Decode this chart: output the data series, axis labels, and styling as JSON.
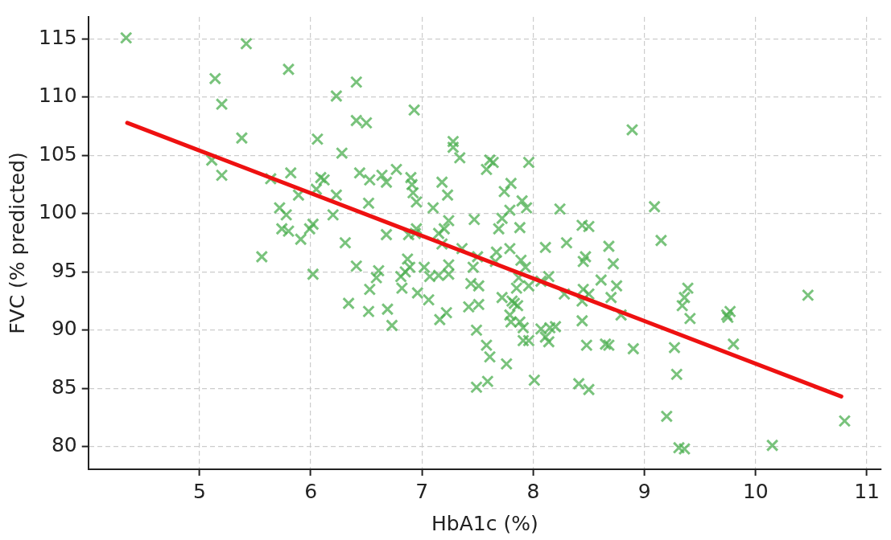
{
  "chart_data": {
    "type": "scatter",
    "xlabel": "HbA1c (%)",
    "ylabel": "FVC (% predicted)",
    "xlim": [
      4.0,
      11.13
    ],
    "ylim": [
      78.05,
      116.9
    ],
    "xticks": [
      5,
      6,
      7,
      8,
      9,
      10,
      11
    ],
    "yticks": [
      80,
      85,
      90,
      95,
      100,
      105,
      110,
      115
    ],
    "grid": true,
    "series": [
      {
        "marker": "cross",
        "color": "#4caf50",
        "x": [
          4.34,
          5.42,
          5.8,
          5.14,
          5.2,
          6.41,
          6.23,
          6.93,
          5.38,
          6.41,
          6.5,
          6.06,
          6.28,
          5.11,
          5.2,
          5.82,
          5.64,
          6.09,
          6.12,
          6.44,
          6.53,
          6.64,
          6.68,
          6.77,
          6.9,
          6.91,
          6.05,
          6.23,
          5.89,
          6.52,
          6.92,
          6.95,
          7.28,
          7.28,
          7.34,
          7.61,
          7.64,
          7.58,
          7.96,
          7.18,
          7.8,
          7.74,
          7.23,
          7.9,
          7.94,
          7.1,
          7.24,
          7.47,
          7.72,
          8.24,
          7.79,
          5.72,
          5.78,
          6.2,
          6.02,
          5.99,
          5.74,
          5.8,
          5.91,
          6.95,
          6.94,
          6.88,
          6.68,
          7.15,
          7.2,
          7.18,
          6.31,
          5.56,
          6.41,
          6.02,
          6.87,
          6.89,
          6.61,
          6.59,
          6.85,
          6.81,
          6.53,
          6.82,
          7.02,
          7.07,
          7.15,
          7.24,
          7.24,
          7.36,
          7.5,
          7.46,
          7.67,
          7.66,
          7.89,
          7.93,
          7.79,
          7.88,
          7.69,
          8.11,
          8.3,
          8.44,
          8.5,
          8.68,
          8.72,
          8.47,
          8.45,
          8.14,
          8.61,
          8.75,
          8.7,
          8.79,
          8.45,
          8.5,
          8.44,
          8.28,
          8.07,
          7.96,
          7.87,
          7.85,
          7.44,
          7.51,
          7.42,
          7.51,
          7.06,
          7.22,
          7.16,
          6.96,
          6.69,
          6.52,
          6.73,
          6.34,
          7.49,
          7.58,
          7.61,
          7.76,
          7.59,
          7.49,
          8.01,
          8.41,
          8.5,
          7.72,
          7.81,
          7.83,
          7.86,
          7.79,
          7.8,
          7.88,
          7.91,
          7.91,
          7.96,
          8.07,
          8.11,
          8.14,
          8.2,
          8.15,
          8.44,
          8.48,
          8.65,
          8.68,
          8.9,
          8.89,
          9.09,
          9.15,
          9.27,
          9.29,
          9.2,
          9.31,
          9.36,
          10.15,
          10.8,
          10.47,
          9.39,
          9.36,
          9.34,
          9.41,
          9.74,
          9.77,
          9.75,
          9.8
        ],
        "values": [
          115.1,
          114.6,
          112.4,
          111.6,
          109.4,
          111.3,
          110.1,
          108.9,
          106.5,
          108,
          107.8,
          106.4,
          105.2,
          104.6,
          103.3,
          103.5,
          103,
          103.1,
          102.9,
          103.5,
          102.9,
          103.3,
          102.7,
          103.8,
          103.1,
          102.5,
          102.1,
          101.6,
          101.6,
          100.9,
          101.8,
          101,
          106.2,
          105.7,
          104.8,
          104.6,
          104.4,
          103.8,
          104.4,
          102.7,
          102.6,
          101.9,
          101.6,
          101.1,
          100.5,
          100.5,
          99.4,
          99.5,
          99.6,
          100.4,
          100.3,
          100.5,
          99.9,
          99.9,
          99.1,
          98.7,
          98.7,
          98.5,
          97.8,
          98.7,
          98.3,
          98.2,
          98.2,
          98.3,
          98.7,
          97.4,
          97.5,
          96.3,
          95.5,
          94.8,
          96.1,
          95.4,
          95.1,
          94.5,
          95,
          94.6,
          93.5,
          93.6,
          95.4,
          94.6,
          94.7,
          94.8,
          95.6,
          97,
          96.3,
          95.4,
          96.7,
          95.9,
          96,
          95.4,
          97,
          98.8,
          98.7,
          97.1,
          97.5,
          99,
          98.9,
          97.2,
          95.7,
          96.3,
          95.9,
          94.6,
          94.3,
          93.8,
          92.8,
          91.3,
          93.5,
          93.1,
          92.5,
          93.1,
          94.2,
          93.8,
          94.5,
          93.6,
          94,
          93.8,
          92,
          92.2,
          92.6,
          91.5,
          90.9,
          93.2,
          91.8,
          91.6,
          90.4,
          92.3,
          90,
          88.7,
          87.7,
          87.1,
          85.6,
          85.1,
          85.7,
          85.4,
          84.9,
          92.8,
          92.5,
          92.3,
          92.1,
          91.3,
          90.7,
          90.7,
          90.2,
          89.1,
          89.1,
          90.1,
          89.4,
          89,
          90.3,
          90.2,
          90.8,
          88.7,
          88.8,
          88.7,
          88.4,
          107.2,
          100.6,
          97.7,
          88.5,
          86.2,
          82.6,
          79.9,
          79.8,
          80.1,
          82.2,
          93,
          93.6,
          92.8,
          92.1,
          91,
          91.3,
          91.6,
          91.1,
          88.8
        ]
      },
      {
        "type": "line",
        "marker": "none",
        "color": "#ee1111",
        "x": [
          4.35,
          10.77
        ],
        "values": [
          107.8,
          84.3
        ]
      }
    ]
  }
}
